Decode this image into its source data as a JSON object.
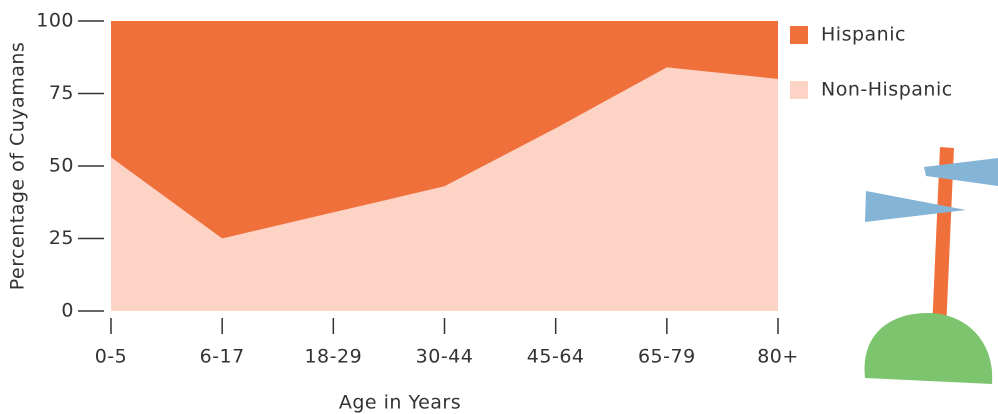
{
  "chart_data": {
    "type": "stacked-area",
    "x_label": "Age in Years",
    "y_label": "Percentage of Cuyamans",
    "categories": [
      "0-5",
      "6-17",
      "18-29",
      "30-44",
      "45-64",
      "65-79",
      "80+"
    ],
    "series": [
      {
        "name": "Hispanic",
        "color": "#f0703c",
        "values": [
          47,
          75,
          66,
          57,
          37,
          16,
          20
        ]
      },
      {
        "name": "Non-Hispanic",
        "color": "#fdd3c5",
        "values": [
          53,
          25,
          34,
          43,
          63,
          84,
          80
        ]
      }
    ],
    "stack_order": [
      "Non-Hispanic",
      "Hispanic"
    ],
    "ylim": [
      0,
      100
    ],
    "yticks": [
      0,
      25,
      50,
      75,
      100
    ],
    "legend": "top-right"
  }
}
